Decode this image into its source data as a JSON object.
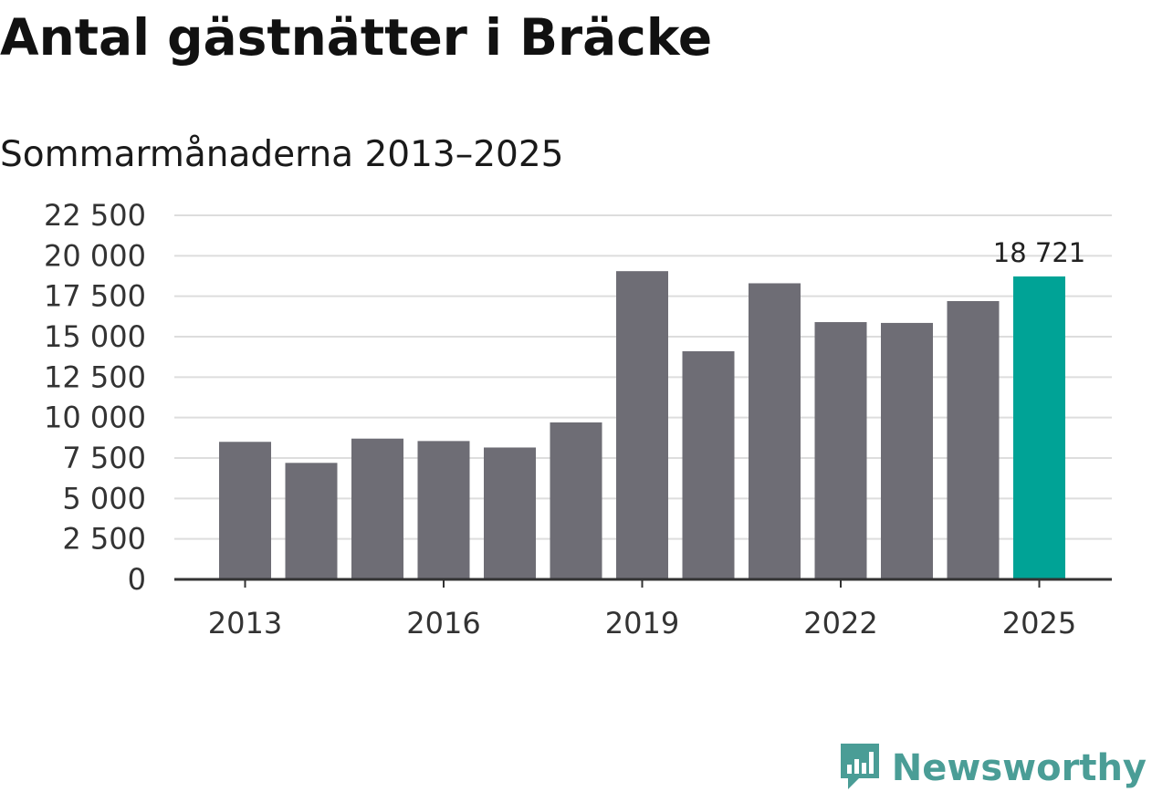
{
  "header": {
    "title": "Antal gästnätter i Bräcke",
    "subtitle": "Sommarmånaderna 2013–2025"
  },
  "branding": {
    "logo_text": "Newsworthy",
    "logo_icon": "bar-chart-speech-bubble-icon",
    "logo_color": "#4a9d96"
  },
  "chart_data": {
    "type": "bar",
    "categories": [
      "2013",
      "2014",
      "2015",
      "2016",
      "2017",
      "2018",
      "2019",
      "2020",
      "2021",
      "2022",
      "2023",
      "2024",
      "2025"
    ],
    "values": [
      8500,
      7200,
      8700,
      8550,
      8150,
      9700,
      19050,
      14100,
      18300,
      15900,
      15850,
      17200,
      18721
    ],
    "x_tick_labels": [
      "2013",
      "",
      "",
      "2016",
      "",
      "",
      "2019",
      "",
      "",
      "2022",
      "",
      "",
      "2025"
    ],
    "y_ticks": [
      0,
      2500,
      5000,
      7500,
      10000,
      12500,
      15000,
      17500,
      20000,
      22500
    ],
    "y_tick_labels": [
      "0",
      "2 500",
      "5 000",
      "7 500",
      "10 000",
      "12 500",
      "15 000",
      "17 500",
      "20 000",
      "22 500"
    ],
    "ylim": [
      0,
      22500
    ],
    "grid": true,
    "bar_color": "#6e6d75",
    "highlight_color": "#00a396",
    "highlight_index": 12,
    "annotations": [
      {
        "index": 12,
        "text": "18 721"
      }
    ],
    "xlabel": "",
    "ylabel": ""
  }
}
